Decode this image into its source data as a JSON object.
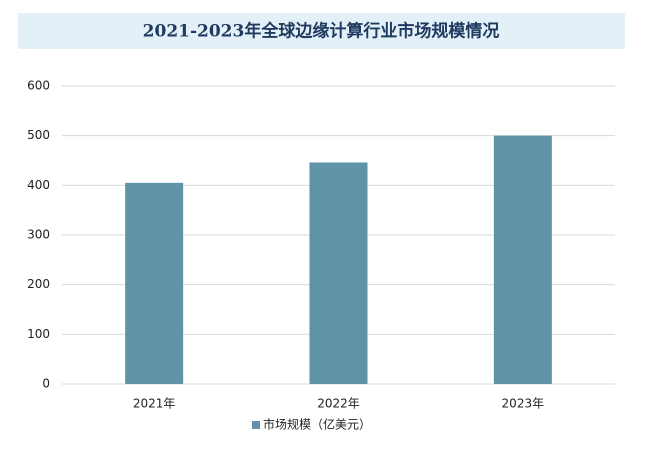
{
  "chart_data": {
    "type": "bar",
    "title": "2021-2023年全球边缘计算行业市场规模情况",
    "categories": [
      "2021年",
      "2022年",
      "2023年"
    ],
    "series": [
      {
        "name": "市场规模（亿美元）",
        "color": "#5e93a8",
        "values": [
          405,
          446,
          500
        ]
      }
    ],
    "ylim": [
      0,
      600
    ],
    "yticks": [
      0,
      100,
      200,
      300,
      400,
      500,
      600
    ],
    "grid": true,
    "legend": "bottom"
  }
}
